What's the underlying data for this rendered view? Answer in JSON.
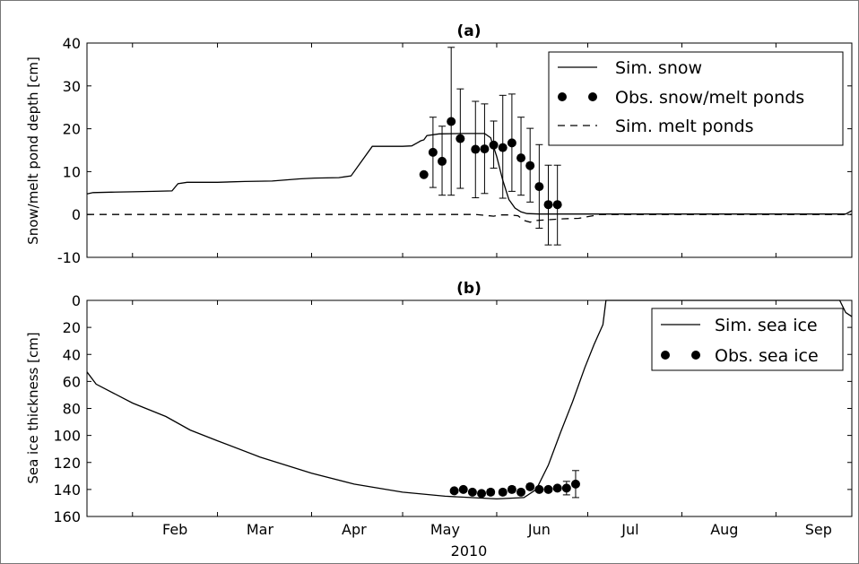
{
  "chart_data": [
    {
      "type": "line",
      "title": "(a)",
      "ylabel": "Snow/melt pond depth [cm]",
      "ylim": [
        -10,
        40
      ],
      "yticks": [
        40,
        30,
        20,
        10,
        0,
        -10
      ],
      "xlim": [
        "2010-01-17",
        "2010-09-26"
      ],
      "legend_position": "top-right",
      "series": [
        {
          "name": "Sim. snow",
          "style": "solid",
          "x": [
            "2010-01-17",
            "2010-01-19",
            "2010-01-25",
            "2010-02-01",
            "2010-02-08",
            "2010-02-14",
            "2010-02-16",
            "2010-02-19",
            "2010-03-01",
            "2010-03-10",
            "2010-03-19",
            "2010-03-28",
            "2010-04-02",
            "2010-04-10",
            "2010-04-14",
            "2010-04-21",
            "2010-05-01",
            "2010-05-04",
            "2010-05-06",
            "2010-05-07",
            "2010-05-08",
            "2010-05-09",
            "2010-05-13",
            "2010-05-20",
            "2010-05-28",
            "2010-05-30",
            "2010-06-01",
            "2010-06-03",
            "2010-06-05",
            "2010-06-07",
            "2010-06-09",
            "2010-06-11",
            "2010-06-15",
            "2010-06-25",
            "2010-07-15",
            "2010-08-15",
            "2010-09-15",
            "2010-09-24",
            "2010-09-26"
          ],
          "y": [
            4.8,
            5.1,
            5.2,
            5.3,
            5.4,
            5.5,
            7.2,
            7.5,
            7.5,
            7.7,
            7.8,
            8.3,
            8.5,
            8.6,
            9.0,
            15.9,
            15.9,
            16.0,
            16.8,
            17.2,
            17.4,
            18.4,
            18.8,
            18.9,
            18.9,
            17.9,
            13.5,
            8.0,
            3.5,
            1.5,
            0.6,
            0.2,
            0.1,
            0.1,
            0.1,
            0.1,
            0.1,
            0.1,
            0.9
          ]
        },
        {
          "name": "Obs. snow/melt ponds",
          "style": "points-errorbars",
          "x": [
            "2010-05-08",
            "2010-05-11",
            "2010-05-14",
            "2010-05-17",
            "2010-05-20",
            "2010-05-25",
            "2010-05-28",
            "2010-05-31",
            "2010-06-03",
            "2010-06-06",
            "2010-06-09",
            "2010-06-12",
            "2010-06-15",
            "2010-06-18",
            "2010-06-21"
          ],
          "y": [
            9.3,
            14.5,
            12.4,
            21.7,
            17.7,
            15.2,
            15.3,
            16.2,
            15.6,
            16.7,
            13.2,
            11.4,
            6.5,
            2.3,
            2.3
          ],
          "err_low": [
            9.3,
            6.3,
            4.5,
            4.5,
            6.1,
            3.9,
            4.9,
            10.8,
            3.8,
            5.4,
            4.5,
            2.9,
            -3.2,
            -7.1,
            -7.1
          ],
          "err_high": [
            9.3,
            22.7,
            20.6,
            39.0,
            29.3,
            26.4,
            25.8,
            21.8,
            27.8,
            28.1,
            22.7,
            20.1,
            16.3,
            11.5,
            11.5
          ]
        },
        {
          "name": "Sim. melt ponds",
          "style": "dashed",
          "x": [
            "2010-01-17",
            "2010-05-25",
            "2010-05-31",
            "2010-06-02",
            "2010-06-05",
            "2010-06-08",
            "2010-06-10",
            "2010-06-12",
            "2010-06-14",
            "2010-06-23",
            "2010-06-28",
            "2010-07-05",
            "2010-09-26"
          ],
          "y": [
            0,
            0,
            -0.4,
            -0.1,
            -0.1,
            -0.3,
            -1.4,
            -1.8,
            -1.4,
            -1.0,
            -0.9,
            0,
            0
          ]
        }
      ]
    },
    {
      "type": "line",
      "title": "(b)",
      "ylabel": "Sea ice thickness [cm]",
      "ylim": [
        160,
        0
      ],
      "y_inverted": true,
      "yticks": [
        0,
        20,
        40,
        60,
        80,
        100,
        120,
        140,
        160
      ],
      "xlim": [
        "2010-01-17",
        "2010-09-26"
      ],
      "xlabel": "2010",
      "xticks": [
        "Feb",
        "Mar",
        "Apr",
        "May",
        "Jun",
        "Jul",
        "Aug",
        "Sep"
      ],
      "legend_position": "top-right",
      "series": [
        {
          "name": "Sim. sea ice",
          "style": "solid",
          "x": [
            "2010-01-17",
            "2010-01-20",
            "2010-02-01",
            "2010-02-12",
            "2010-02-20",
            "2010-03-01",
            "2010-03-15",
            "2010-04-01",
            "2010-04-15",
            "2010-05-01",
            "2010-05-15",
            "2010-06-01",
            "2010-06-10",
            "2010-06-14",
            "2010-06-18",
            "2010-06-22",
            "2010-06-26",
            "2010-06-30",
            "2010-07-03",
            "2010-07-06",
            "2010-07-07",
            "2010-09-22",
            "2010-09-24",
            "2010-09-26"
          ],
          "y": [
            53,
            62,
            76,
            86,
            96,
            104,
            116,
            128,
            136,
            142,
            145,
            147,
            146,
            140,
            122,
            98,
            75,
            50,
            33,
            18,
            0,
            0,
            9,
            12
          ]
        },
        {
          "name": "Obs. sea ice",
          "style": "points-errorbars",
          "x": [
            "2010-05-18",
            "2010-05-21",
            "2010-05-24",
            "2010-05-27",
            "2010-05-30",
            "2010-06-03",
            "2010-06-06",
            "2010-06-09",
            "2010-06-12",
            "2010-06-15",
            "2010-06-18",
            "2010-06-21",
            "2010-06-24",
            "2010-06-27"
          ],
          "y": [
            141,
            140,
            142,
            143,
            142,
            142,
            140,
            142,
            138,
            140,
            140,
            139,
            139,
            136
          ],
          "err_low": [
            140,
            139,
            141,
            142,
            140,
            140,
            138,
            140,
            136,
            139,
            139,
            138,
            134,
            126
          ],
          "err_high": [
            142,
            141,
            143,
            144,
            144,
            144,
            142,
            144,
            140,
            141,
            141,
            140,
            144,
            146
          ]
        }
      ]
    }
  ]
}
